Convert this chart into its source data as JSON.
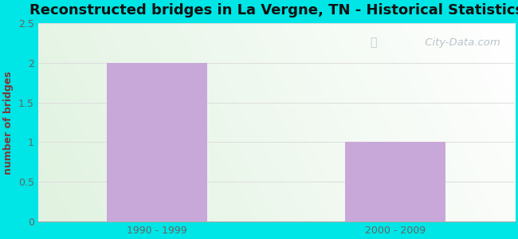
{
  "title": "Reconstructed bridges in La Vergne, TN - Historical Statistics",
  "categories": [
    "1990 - 1999",
    "2000 - 2009"
  ],
  "values": [
    2,
    1
  ],
  "bar_color": "#c8a8d8",
  "ylabel": "number of bridges",
  "ylim": [
    0,
    2.5
  ],
  "yticks": [
    0,
    0.5,
    1,
    1.5,
    2,
    2.5
  ],
  "title_fontsize": 13,
  "ylabel_color": "#7b3b3b",
  "tick_label_color": "#666666",
  "background_outer": "#00e5e5",
  "grid_color": "#dddddd",
  "watermark": " City-Data.com"
}
